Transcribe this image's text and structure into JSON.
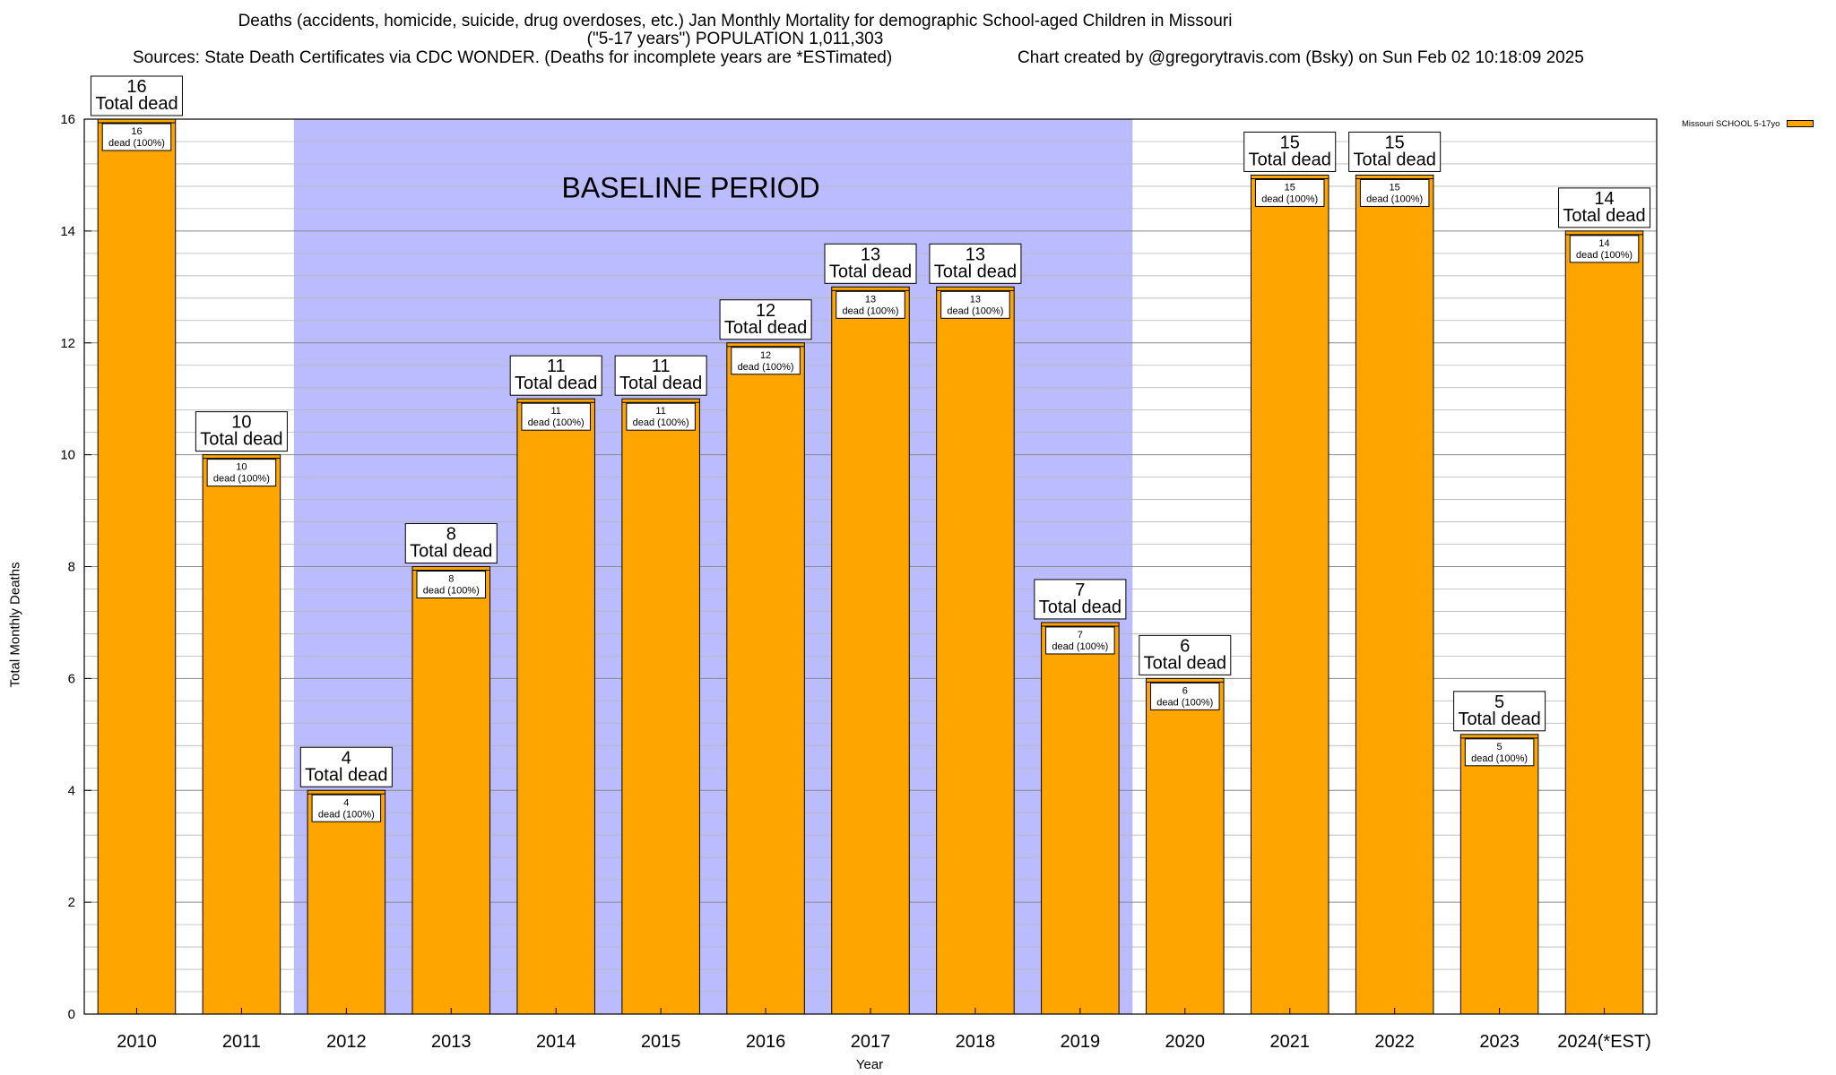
{
  "chart_data": {
    "type": "bar",
    "title_lines": [
      "Deaths (accidents, homicide, suicide, drug overdoses, etc.) Jan Monthly Mortality for demographic School-aged Children in Missouri",
      "(\"5-17 years\") POPULATION 1,011,303"
    ],
    "sources": "Sources: State Death Certificates via CDC WONDER. (Deaths for incomplete years are *ESTimated)",
    "credit": "Chart created by @gregorytravis.com (Bsky) on Sun Feb 02 10:18:09 2025",
    "xlabel": "Year",
    "ylabel": "Total Monthly Deaths",
    "ylim": [
      0,
      16
    ],
    "yticks": [
      0,
      2,
      4,
      6,
      8,
      10,
      12,
      14,
      16
    ],
    "grid": true,
    "legend_position": "top-right",
    "categories": [
      "2010",
      "2011",
      "2012",
      "2013",
      "2014",
      "2015",
      "2016",
      "2017",
      "2018",
      "2019",
      "2020",
      "2021",
      "2022",
      "2023",
      "2024(*EST)"
    ],
    "series": [
      {
        "name": "Missouri SCHOOL 5-17yo",
        "color": "#FFA500",
        "values": [
          16,
          10,
          4,
          8,
          11,
          11,
          12,
          13,
          13,
          7,
          6,
          15,
          15,
          5,
          14
        ]
      }
    ],
    "total_label": "Total dead",
    "inner_label": "dead (100%)",
    "baseline": {
      "label": "BASELINE PERIOD",
      "start": "2012",
      "end": "2019",
      "color": "#BBBBFF"
    }
  }
}
